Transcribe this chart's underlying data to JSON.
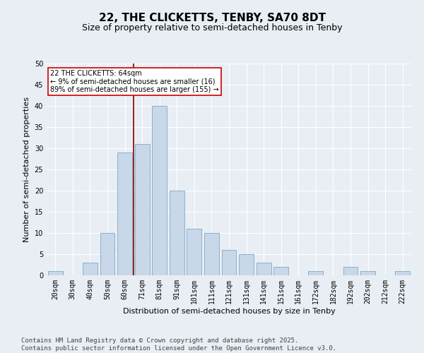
{
  "title": "22, THE CLICKETTS, TENBY, SA70 8DT",
  "subtitle": "Size of property relative to semi-detached houses in Tenby",
  "xlabel": "Distribution of semi-detached houses by size in Tenby",
  "ylabel": "Number of semi-detached properties",
  "categories": [
    "20sqm",
    "30sqm",
    "40sqm",
    "50sqm",
    "60sqm",
    "71sqm",
    "81sqm",
    "91sqm",
    "101sqm",
    "111sqm",
    "121sqm",
    "131sqm",
    "141sqm",
    "151sqm",
    "161sqm",
    "172sqm",
    "182sqm",
    "192sqm",
    "202sqm",
    "212sqm",
    "222sqm"
  ],
  "values": [
    1,
    0,
    3,
    10,
    29,
    31,
    40,
    20,
    11,
    10,
    6,
    5,
    3,
    2,
    0,
    1,
    0,
    2,
    1,
    0,
    1
  ],
  "bar_color": "#c8d8e8",
  "bar_edge_color": "#8ab0cc",
  "vline_x_index": 4,
  "vline_color": "#880000",
  "annotation_text": "22 THE CLICKETTS: 64sqm\n← 9% of semi-detached houses are smaller (16)\n89% of semi-detached houses are larger (155) →",
  "annotation_box_color": "#ffffff",
  "annotation_box_edge": "#cc0000",
  "background_color": "#e8eef4",
  "grid_color": "#ffffff",
  "ylim": [
    0,
    50
  ],
  "yticks": [
    0,
    5,
    10,
    15,
    20,
    25,
    30,
    35,
    40,
    45,
    50
  ],
  "footer": "Contains HM Land Registry data © Crown copyright and database right 2025.\nContains public sector information licensed under the Open Government Licence v3.0.",
  "title_fontsize": 11,
  "subtitle_fontsize": 9,
  "label_fontsize": 8,
  "tick_fontsize": 7,
  "footer_fontsize": 6.5
}
